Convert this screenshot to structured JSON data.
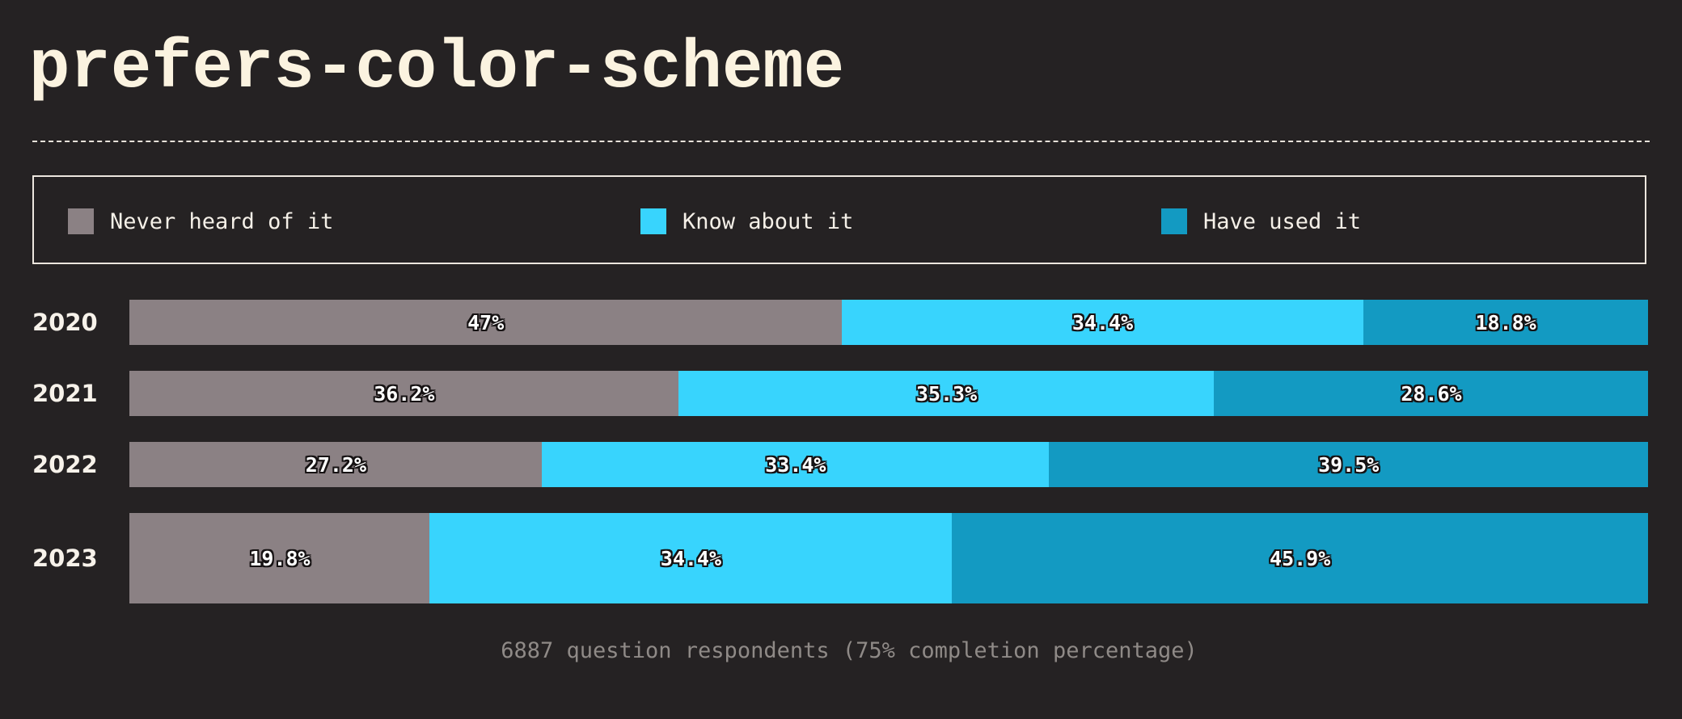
{
  "title": "prefers-color-scheme",
  "footnote": "6887 question respondents (75% completion percentage)",
  "colors": {
    "background": "#252223",
    "never": "#8b8184",
    "know": "#38d4fd",
    "used": "#139ac2"
  },
  "chart_data": {
    "type": "bar",
    "orientation": "horizontal",
    "stacked": true,
    "normalized_to": 100,
    "unit": "%",
    "categories": [
      "2020",
      "2021",
      "2022",
      "2023"
    ],
    "legend": [
      {
        "label": "Never heard of it",
        "color": "#8b8184"
      },
      {
        "label": "Know about it",
        "color": "#38d4fd"
      },
      {
        "label": "Have used it",
        "color": "#139ac2"
      }
    ],
    "legend_position": "top",
    "series": [
      {
        "name": "Never heard of it",
        "color": "#8b8184",
        "values": [
          47,
          36.2,
          27.2,
          19.8
        ],
        "labels": [
          "47%",
          "36.2%",
          "27.2%",
          "19.8%"
        ]
      },
      {
        "name": "Know about it",
        "color": "#38d4fd",
        "values": [
          34.4,
          35.3,
          33.4,
          34.4
        ],
        "labels": [
          "34.4%",
          "35.3%",
          "33.4%",
          "34.4%"
        ]
      },
      {
        "name": "Have used it",
        "color": "#139ac2",
        "values": [
          18.8,
          28.6,
          39.5,
          45.9
        ],
        "labels": [
          "18.8%",
          "28.6%",
          "39.5%",
          "45.9%"
        ]
      }
    ],
    "grid": false
  }
}
